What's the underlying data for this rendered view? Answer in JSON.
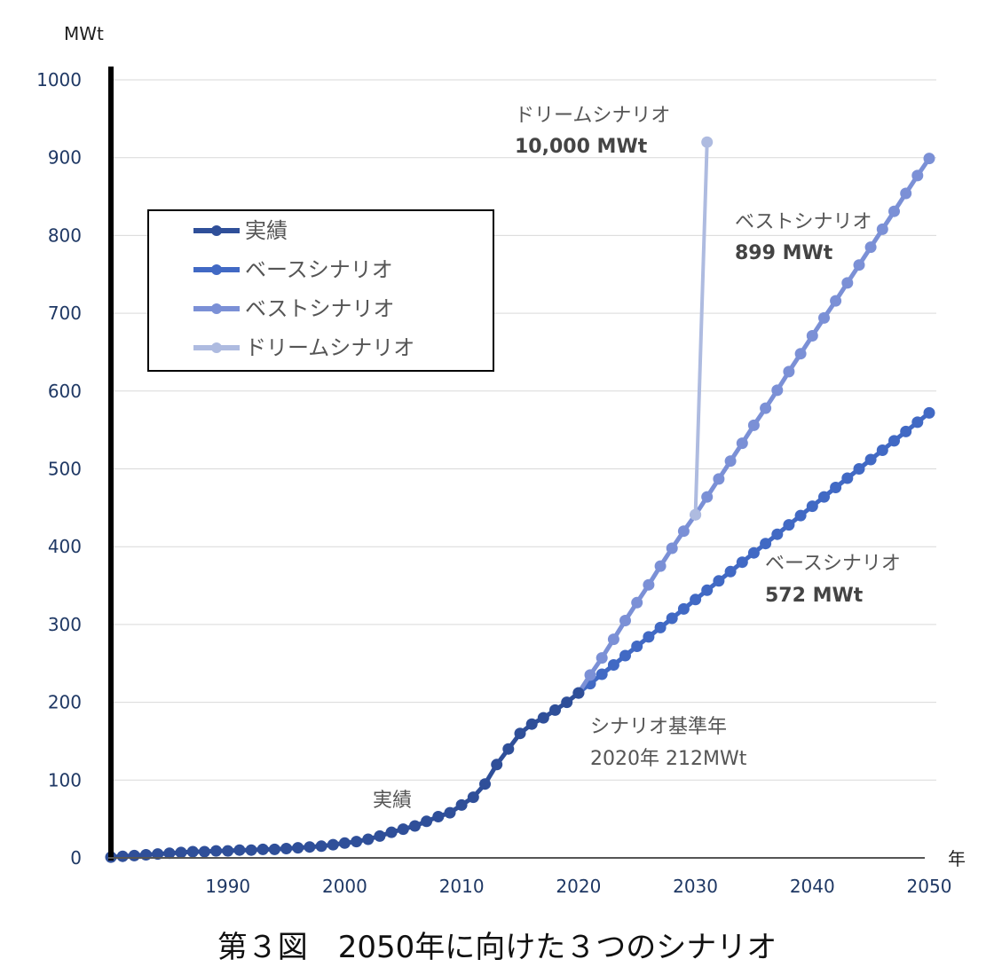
{
  "chart_data": {
    "type": "line",
    "title": "",
    "caption": "第３図　2050年に向けた３つのシナリオ",
    "ylabel": "MWt",
    "xlabel": "年",
    "ylim": [
      0,
      1000
    ],
    "yticks": [
      0,
      100,
      200,
      300,
      400,
      500,
      600,
      700,
      800,
      900,
      1000
    ],
    "xlim": [
      1980,
      2050
    ],
    "xticks": [
      1990,
      2000,
      2010,
      2020,
      2030,
      2040,
      2050
    ],
    "grid": "horizontal",
    "legend_position": "upper-left",
    "legend": [
      "実績",
      "ベースシナリオ",
      "ベストシナリオ",
      "ドリームシナリオ"
    ],
    "series": [
      {
        "name": "実績",
        "color": "#2f4f99",
        "x": [
          1980,
          1981,
          1982,
          1983,
          1984,
          1985,
          1986,
          1987,
          1988,
          1989,
          1990,
          1991,
          1992,
          1993,
          1994,
          1995,
          1996,
          1997,
          1998,
          1999,
          2000,
          2001,
          2002,
          2003,
          2004,
          2005,
          2006,
          2007,
          2008,
          2009,
          2010,
          2011,
          2012,
          2013,
          2014,
          2015,
          2016,
          2017,
          2018,
          2019,
          2020
        ],
        "y": [
          1,
          2,
          3,
          4,
          5,
          6,
          7,
          8,
          8,
          9,
          9,
          10,
          10,
          11,
          11,
          12,
          13,
          14,
          15,
          17,
          19,
          21,
          24,
          28,
          33,
          37,
          41,
          47,
          53,
          58,
          68,
          78,
          95,
          120,
          140,
          160,
          172,
          180,
          190,
          200,
          212
        ]
      },
      {
        "name": "ベースシナリオ",
        "color": "#4169c4",
        "x": [
          2020,
          2021,
          2022,
          2023,
          2024,
          2025,
          2026,
          2027,
          2028,
          2029,
          2030,
          2031,
          2032,
          2033,
          2034,
          2035,
          2036,
          2037,
          2038,
          2039,
          2040,
          2041,
          2042,
          2043,
          2044,
          2045,
          2046,
          2047,
          2048,
          2049,
          2050
        ],
        "y": [
          212,
          224,
          236,
          248,
          260,
          272,
          284,
          296,
          308,
          320,
          332,
          344,
          356,
          368,
          380,
          392,
          404,
          416,
          428,
          440,
          452,
          464,
          476,
          488,
          500,
          512,
          524,
          536,
          548,
          560,
          572
        ]
      },
      {
        "name": "ベストシナリオ",
        "color": "#7b90d6",
        "x": [
          2020,
          2021,
          2022,
          2023,
          2024,
          2025,
          2026,
          2027,
          2028,
          2029,
          2030,
          2031,
          2032,
          2033,
          2034,
          2035,
          2036,
          2037,
          2038,
          2039,
          2040,
          2041,
          2042,
          2043,
          2044,
          2045,
          2046,
          2047,
          2048,
          2049,
          2050
        ],
        "y": [
          212,
          235,
          257,
          281,
          305,
          328,
          351,
          375,
          398,
          420,
          441,
          464,
          487,
          510,
          533,
          556,
          578,
          601,
          625,
          648,
          671,
          694,
          716,
          739,
          762,
          785,
          808,
          831,
          854,
          877,
          899
        ]
      },
      {
        "name": "ドリームシナリオ",
        "color": "#aebbe0",
        "x": [
          2030,
          2031
        ],
        "y": [
          441,
          920
        ]
      }
    ],
    "annotations": {
      "dream_title": "ドリームシナリオ",
      "dream_value": "10,000 MWt",
      "best_title": "ベストシナリオ",
      "best_value": "899 MWt",
      "base_title": "ベースシナリオ",
      "base_value": "572 MWt",
      "ref_title": "シナリオ基準年",
      "ref_value": "2020年 212MWt",
      "actual_label": "実績"
    }
  }
}
